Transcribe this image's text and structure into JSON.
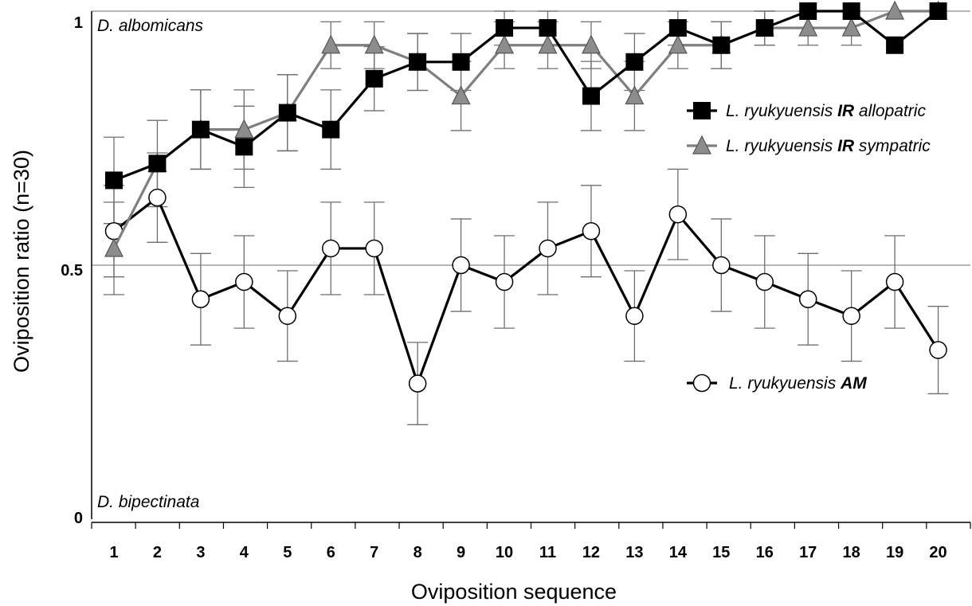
{
  "chart_data": {
    "type": "line",
    "title": "",
    "xlabel": "Oviposition sequence",
    "ylabel": "Oviposition ratio (n=30)",
    "ylim": [
      0,
      1
    ],
    "yticks": [
      "0",
      "0.5",
      "1"
    ],
    "categories": [
      "1",
      "2",
      "3",
      "4",
      "5",
      "6",
      "7",
      "8",
      "9",
      "10",
      "11",
      "12",
      "13",
      "14",
      "15",
      "16",
      "17",
      "18",
      "19",
      "20"
    ],
    "annotations": {
      "top": "D. albomicans",
      "bottom": "D. bipectinata"
    },
    "reference_lines": [
      0.5,
      1
    ],
    "legend_position": "right",
    "series": [
      {
        "name": "L. ryukyuensis IR allopatric",
        "legend_parts": [
          "L. ryukyuensis ",
          "IR",
          " allopatric"
        ],
        "marker": "square",
        "color": "#000000",
        "marker_fill": "#000000",
        "values": [
          0.667,
          0.7,
          0.767,
          0.733,
          0.8,
          0.767,
          0.867,
          0.9,
          0.9,
          0.967,
          0.967,
          0.833,
          0.9,
          0.967,
          0.933,
          0.967,
          1.0,
          1.0,
          0.933,
          1.0
        ],
        "errors": [
          0.085,
          0.085,
          0.078,
          0.08,
          0.075,
          0.078,
          0.063,
          0.056,
          0.056,
          0.034,
          0.034,
          0.068,
          0.056,
          0.034,
          0.046,
          0.034,
          0.0,
          0.0,
          0.0,
          0.0
        ]
      },
      {
        "name": "L. ryukyuensis IR sympatric",
        "legend_parts": [
          "L. ryukyuensis ",
          "IR",
          " sympatric"
        ],
        "marker": "triangle",
        "color": "#7f7f7f",
        "marker_fill": "#8c8c8c",
        "values": [
          0.533,
          0.7,
          0.767,
          0.767,
          0.8,
          0.933,
          0.933,
          0.9,
          0.833,
          0.933,
          0.933,
          0.933,
          0.833,
          0.933,
          0.933,
          0.967,
          0.967,
          0.967,
          1.0,
          1.0
        ],
        "errors": [
          0.091,
          0.0,
          0.078,
          0.078,
          0.075,
          0.046,
          0.046,
          0.056,
          0.068,
          0.046,
          0.046,
          0.046,
          0.068,
          0.046,
          0.046,
          0.034,
          0.034,
          0.034,
          0.0,
          0.0
        ]
      },
      {
        "name": "L. ryukyuensis AM",
        "legend_parts": [
          "L. ryukyuensis ",
          "AM",
          ""
        ],
        "marker": "circle",
        "color": "#000000",
        "marker_fill": "#ffffff",
        "values": [
          0.567,
          0.633,
          0.433,
          0.467,
          0.4,
          0.533,
          0.533,
          0.267,
          0.5,
          0.467,
          0.533,
          0.567,
          0.4,
          0.6,
          0.5,
          0.467,
          0.433,
          0.4,
          0.467,
          0.333
        ],
        "errors": [
          0.09,
          0.088,
          0.09,
          0.091,
          0.089,
          0.091,
          0.091,
          0.081,
          0.091,
          0.091,
          0.091,
          0.09,
          0.089,
          0.089,
          0.091,
          0.091,
          0.09,
          0.089,
          0.091,
          0.086
        ]
      }
    ]
  }
}
